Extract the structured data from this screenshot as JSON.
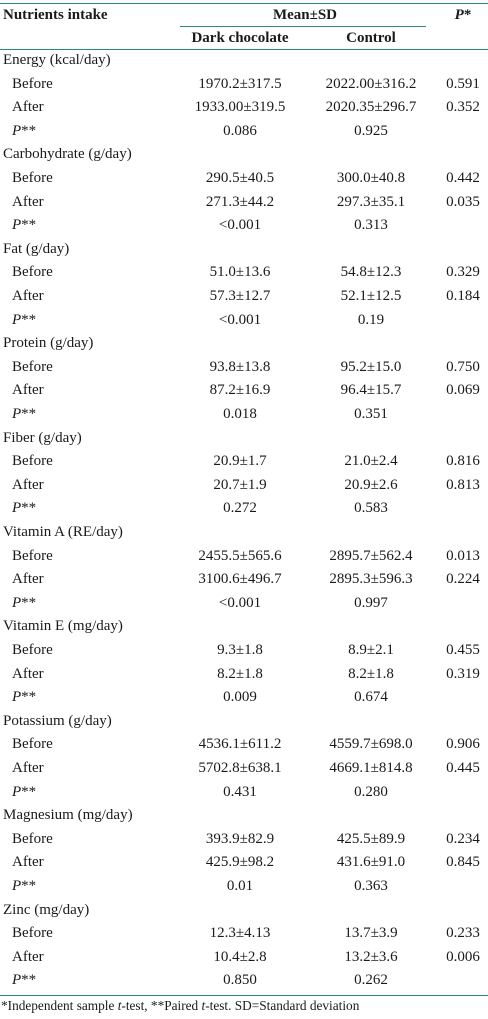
{
  "header": {
    "col_nutrients": "Nutrients intake",
    "col_group": "Mean±SD",
    "col_dark": "Dark chocolate",
    "col_control": "Control",
    "col_p": "P",
    "col_p_suffix": "*"
  },
  "nutrients": [
    {
      "name": "Energy (kcal/day)",
      "rows": [
        {
          "label": "Before",
          "dark": "1970.2±317.5",
          "control": "2022.00±316.2",
          "p": "0.591"
        },
        {
          "label": "After",
          "dark": "1933.00±319.5",
          "control": "2020.35±296.7",
          "p": "0.352"
        },
        {
          "label": "P",
          "label_suffix": "**",
          "dark": "0.086",
          "control": "0.925",
          "p": ""
        }
      ]
    },
    {
      "name": "Carbohydrate (g/day)",
      "rows": [
        {
          "label": "Before",
          "dark": "290.5±40.5",
          "control": "300.0±40.8",
          "p": "0.442"
        },
        {
          "label": "After",
          "dark": "271.3±44.2",
          "control": "297.3±35.1",
          "p": "0.035"
        },
        {
          "label": "P",
          "label_suffix": "**",
          "dark": "<0.001",
          "control": "0.313",
          "p": ""
        }
      ]
    },
    {
      "name": "Fat (g/day)",
      "rows": [
        {
          "label": "Before",
          "dark": "51.0±13.6",
          "control": "54.8±12.3",
          "p": "0.329"
        },
        {
          "label": "After",
          "dark": "57.3±12.7",
          "control": "52.1±12.5",
          "p": "0.184"
        },
        {
          "label": "P",
          "label_suffix": "**",
          "dark": "<0.001",
          "control": "0.19",
          "p": ""
        }
      ]
    },
    {
      "name": "Protein (g/day)",
      "rows": [
        {
          "label": "Before",
          "dark": "93.8±13.8",
          "control": "95.2±15.0",
          "p": "0.750"
        },
        {
          "label": "After",
          "dark": "87.2±16.9",
          "control": "96.4±15.7",
          "p": "0.069"
        },
        {
          "label": "P",
          "label_suffix": "**",
          "dark": "0.018",
          "control": "0.351",
          "p": ""
        }
      ]
    },
    {
      "name": "Fiber (g/day)",
      "rows": [
        {
          "label": "Before",
          "dark": "20.9±1.7",
          "control": "21.0±2.4",
          "p": "0.816"
        },
        {
          "label": "After",
          "dark": "20.7±1.9",
          "control": "20.9±2.6",
          "p": "0.813"
        },
        {
          "label": "P",
          "label_suffix": "**",
          "dark": "0.272",
          "control": "0.583",
          "p": ""
        }
      ]
    },
    {
      "name": "Vitamin A (RE/day)",
      "rows": [
        {
          "label": "Before",
          "dark": "2455.5±565.6",
          "control": "2895.7±562.4",
          "p": "0.013"
        },
        {
          "label": "After",
          "dark": "3100.6±496.7",
          "control": "2895.3±596.3",
          "p": "0.224"
        },
        {
          "label": "P",
          "label_suffix": "**",
          "dark": "<0.001",
          "control": "0.997",
          "p": ""
        }
      ]
    },
    {
      "name": "Vitamin E (mg/day)",
      "rows": [
        {
          "label": "Before",
          "dark": "9.3±1.8",
          "control": "8.9±2.1",
          "p": "0.455"
        },
        {
          "label": "After",
          "dark": "8.2±1.8",
          "control": "8.2±1.8",
          "p": "0.319"
        },
        {
          "label": "P",
          "label_suffix": "**",
          "dark": "0.009",
          "control": "0.674",
          "p": ""
        }
      ]
    },
    {
      "name": "Potassium (g/day)",
      "rows": [
        {
          "label": "Before",
          "dark": "4536.1±611.2",
          "control": "4559.7±698.0",
          "p": "0.906"
        },
        {
          "label": "After",
          "dark": "5702.8±638.1",
          "control": "4669.1±814.8",
          "p": "0.445"
        },
        {
          "label": "P",
          "label_suffix": "**",
          "dark": "0.431",
          "control": "0.280",
          "p": ""
        }
      ]
    },
    {
      "name": "Magnesium (mg/day)",
      "rows": [
        {
          "label": "Before",
          "dark": "393.9±82.9",
          "control": "425.5±89.9",
          "p": "0.234"
        },
        {
          "label": "After",
          "dark": "425.9±98.2",
          "control": "431.6±91.0",
          "p": "0.845"
        },
        {
          "label": "P",
          "label_suffix": "**",
          "dark": "0.01",
          "control": "0.363",
          "p": ""
        }
      ]
    },
    {
      "name": "Zinc (mg/day)",
      "rows": [
        {
          "label": "Before",
          "dark": "12.3±4.13",
          "control": "13.7±3.9",
          "p": "0.233"
        },
        {
          "label": "After",
          "dark": "10.4±2.8",
          "control": "13.2±3.6",
          "p": "0.006"
        },
        {
          "label": "P",
          "label_suffix": "**",
          "dark": "0.850",
          "control": "0.262",
          "p": ""
        }
      ]
    }
  ],
  "footnote": {
    "part1": "*Independent sample ",
    "t1": "t",
    "part2": "-test, **Paired ",
    "t2": "t",
    "part3": "-test. SD=Standard deviation"
  }
}
